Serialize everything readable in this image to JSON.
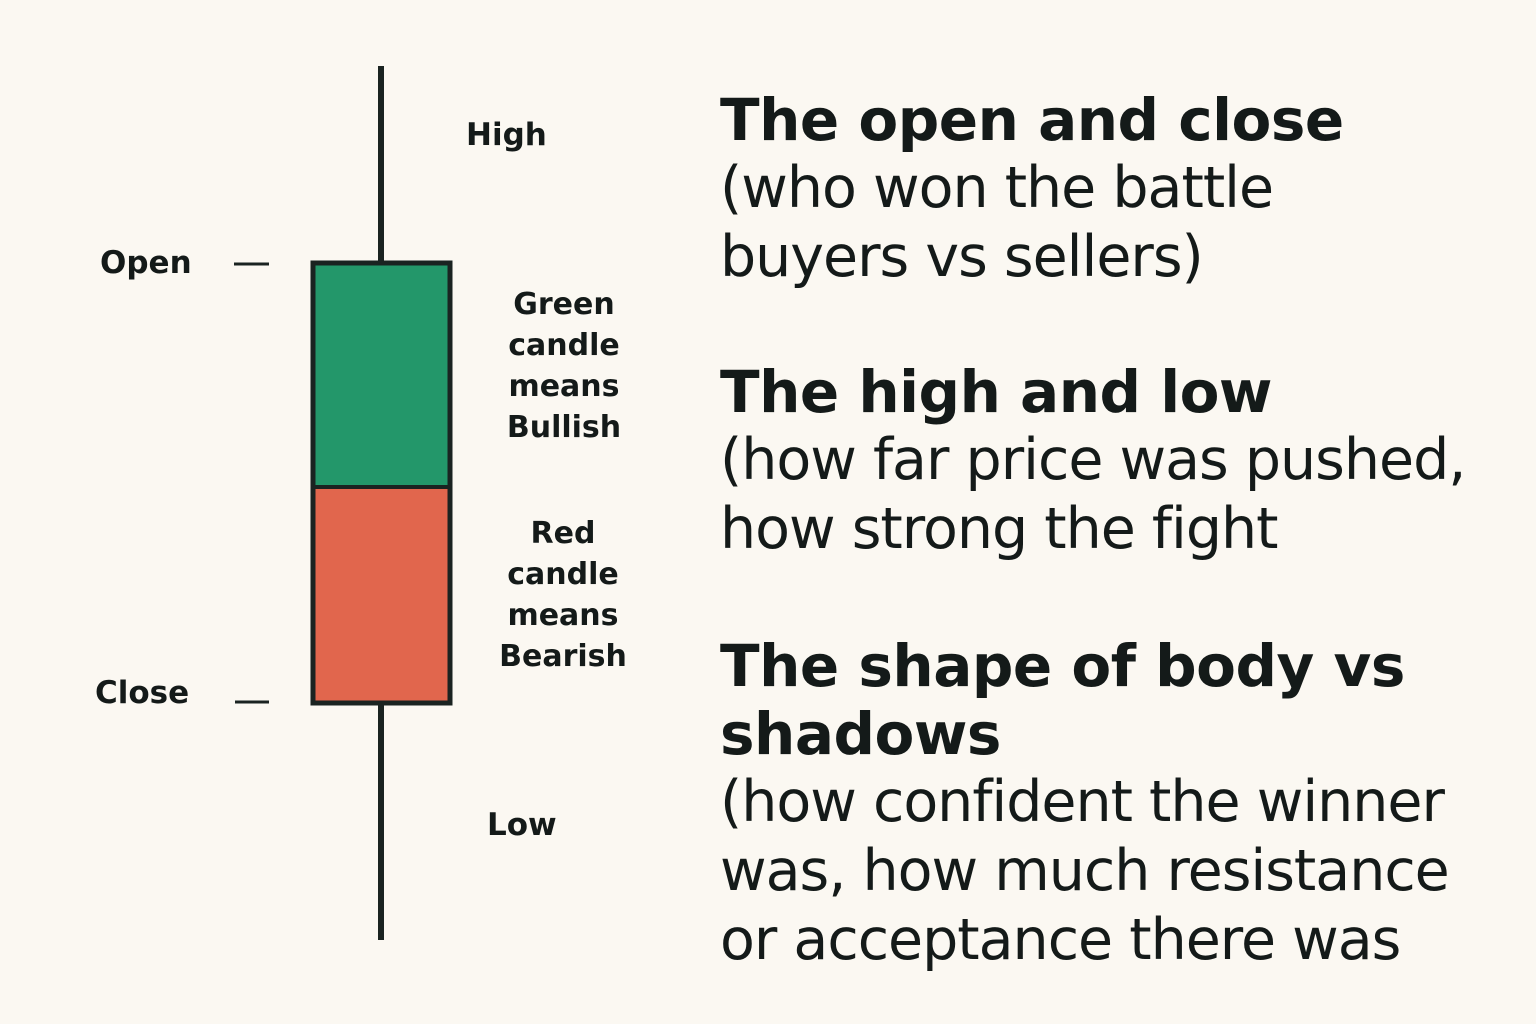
{
  "diagram": {
    "labels": {
      "high": "High",
      "open": "Open",
      "close": "Close",
      "low": "Low"
    },
    "green_note": [
      "Green",
      "candle",
      "means",
      "Bullish"
    ],
    "red_note": [
      "Red",
      "candle",
      "means",
      "Bearish"
    ],
    "colors": {
      "green_body": "#23976a",
      "red_body": "#e1664d",
      "outline": "#1a2321",
      "background": "#fbf8f2"
    }
  },
  "points": [
    {
      "heading": [
        "The open and close"
      ],
      "body": [
        "(who won the battle",
        "buyers vs sellers)"
      ]
    },
    {
      "heading": [
        "The high and low"
      ],
      "body": [
        "(how far price was pushed,",
        "how strong the fight"
      ]
    },
    {
      "heading": [
        "The shape of body vs",
        "shadows"
      ],
      "body": [
        "(how confident the winner",
        "was, how much resistance",
        "or acceptance there was"
      ]
    }
  ]
}
